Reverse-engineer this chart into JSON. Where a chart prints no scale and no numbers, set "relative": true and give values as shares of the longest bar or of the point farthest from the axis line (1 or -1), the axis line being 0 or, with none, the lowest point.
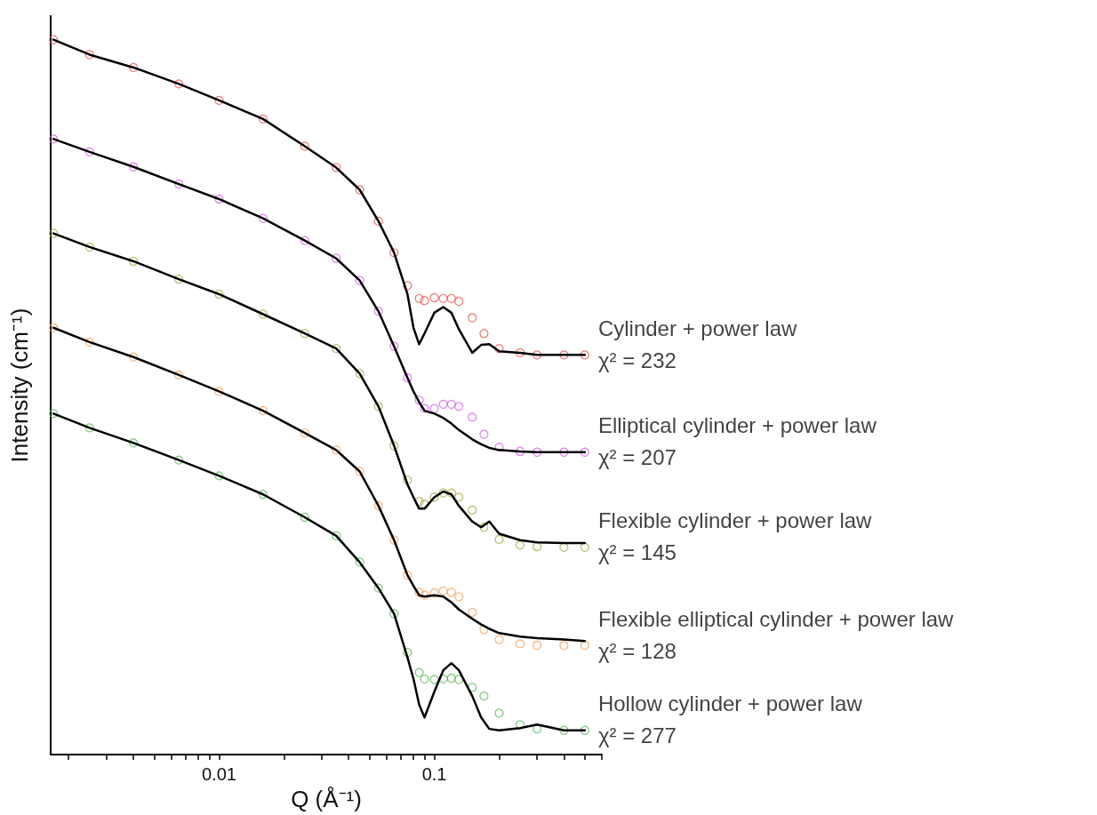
{
  "chart_data": {
    "type": "scatter",
    "xlabel": "Q (Å⁻¹)",
    "ylabel": "Intensity (cm⁻¹)",
    "relative": true,
    "log": "x",
    "grid": false,
    "legend": false,
    "marker": "circle",
    "line_style": "solid",
    "xlim": [
      0.00165,
      0.6
    ],
    "xticks": [
      {
        "value": 0.002,
        "label": null
      },
      {
        "value": 0.003,
        "label": null
      },
      {
        "value": 0.004,
        "label": null
      },
      {
        "value": 0.005,
        "label": null
      },
      {
        "value": 0.006,
        "label": null
      },
      {
        "value": 0.007,
        "label": null
      },
      {
        "value": 0.008,
        "label": null
      },
      {
        "value": 0.009,
        "label": null
      },
      0.01,
      {
        "value": 0.02,
        "label": null
      },
      {
        "value": 0.03,
        "label": null
      },
      {
        "value": 0.04,
        "label": null
      },
      {
        "value": 0.05,
        "label": null
      },
      {
        "value": 0.06,
        "label": null
      },
      {
        "value": 0.07,
        "label": null
      },
      {
        "value": 0.08,
        "label": null
      },
      {
        "value": 0.09,
        "label": null
      },
      0.1,
      {
        "value": 0.2,
        "label": null
      },
      {
        "value": 0.3,
        "label": null
      },
      {
        "value": 0.4,
        "label": null
      },
      {
        "value": 0.5,
        "label": null
      },
      {
        "value": 0.6,
        "label": null
      }
    ],
    "annotations": [
      "χ² = 232",
      "χ² = 207",
      "χ² = 145",
      "χ² = 128",
      "χ² = 277"
    ],
    "series": [
      {
        "name": "Cylinder + power law",
        "color": "#e8554e",
        "x": [
          0.0017,
          0.0025,
          0.004,
          0.0065,
          0.01,
          0.016,
          0.025,
          0.035,
          0.045,
          0.055,
          0.065,
          0.075,
          0.085,
          0.09,
          0.1,
          0.11,
          0.12,
          0.13,
          0.15,
          0.17,
          0.2,
          0.25,
          0.3,
          0.4,
          0.5
        ],
        "values": [
          1.0,
          0.979,
          0.961,
          0.938,
          0.915,
          0.889,
          0.851,
          0.821,
          0.79,
          0.746,
          0.702,
          0.656,
          0.638,
          0.635,
          0.639,
          0.638,
          0.638,
          0.634,
          0.611,
          0.589,
          0.568,
          0.562,
          0.559,
          0.559,
          0.559
        ]
      },
      {
        "type": "line",
        "marker": "none",
        "color": "#000000",
        "x": [
          0.0017,
          0.0025,
          0.004,
          0.0065,
          0.01,
          0.016,
          0.025,
          0.035,
          0.045,
          0.055,
          0.065,
          0.075,
          0.08,
          0.085,
          0.09,
          0.1,
          0.11,
          0.12,
          0.13,
          0.15,
          0.165,
          0.18,
          0.2,
          0.25,
          0.3,
          0.4,
          0.5
        ],
        "values": [
          1.0,
          0.979,
          0.961,
          0.938,
          0.915,
          0.889,
          0.851,
          0.821,
          0.79,
          0.746,
          0.702,
          0.644,
          0.597,
          0.574,
          0.589,
          0.618,
          0.626,
          0.618,
          0.595,
          0.562,
          0.573,
          0.574,
          0.564,
          0.562,
          0.559,
          0.559,
          0.559
        ]
      },
      {
        "name": "Elliptical cylinder + power law",
        "color": "#d65ee8",
        "x": [
          0.0017,
          0.0025,
          0.004,
          0.0065,
          0.01,
          0.016,
          0.025,
          0.035,
          0.045,
          0.055,
          0.065,
          0.075,
          0.085,
          0.09,
          0.1,
          0.11,
          0.12,
          0.13,
          0.15,
          0.17,
          0.2,
          0.25,
          0.3,
          0.4,
          0.5
        ],
        "values": [
          0.861,
          0.843,
          0.822,
          0.798,
          0.777,
          0.75,
          0.719,
          0.694,
          0.663,
          0.62,
          0.571,
          0.527,
          0.496,
          0.484,
          0.484,
          0.49,
          0.49,
          0.487,
          0.472,
          0.448,
          0.43,
          0.424,
          0.423,
          0.423,
          0.423
        ]
      },
      {
        "type": "line",
        "marker": "none",
        "color": "#000000",
        "x": [
          0.0017,
          0.0025,
          0.004,
          0.0065,
          0.01,
          0.016,
          0.025,
          0.035,
          0.045,
          0.055,
          0.065,
          0.075,
          0.08,
          0.085,
          0.09,
          0.1,
          0.11,
          0.12,
          0.13,
          0.15,
          0.165,
          0.18,
          0.2,
          0.25,
          0.3,
          0.4,
          0.5
        ],
        "values": [
          0.861,
          0.843,
          0.822,
          0.798,
          0.777,
          0.75,
          0.719,
          0.694,
          0.663,
          0.62,
          0.571,
          0.527,
          0.508,
          0.493,
          0.481,
          0.477,
          0.471,
          0.463,
          0.454,
          0.441,
          0.434,
          0.429,
          0.426,
          0.424,
          0.423,
          0.423,
          0.423
        ]
      },
      {
        "name": "Flexible cylinder + power law",
        "color": "#a8a94a",
        "x": [
          0.0017,
          0.0025,
          0.004,
          0.0065,
          0.01,
          0.016,
          0.025,
          0.035,
          0.045,
          0.055,
          0.065,
          0.075,
          0.085,
          0.09,
          0.1,
          0.11,
          0.12,
          0.13,
          0.15,
          0.17,
          0.2,
          0.25,
          0.3,
          0.4,
          0.5
        ],
        "values": [
          0.729,
          0.71,
          0.69,
          0.665,
          0.644,
          0.616,
          0.589,
          0.568,
          0.533,
          0.487,
          0.432,
          0.384,
          0.354,
          0.35,
          0.36,
          0.366,
          0.366,
          0.36,
          0.342,
          0.318,
          0.301,
          0.293,
          0.291,
          0.29,
          0.29
        ]
      },
      {
        "type": "line",
        "marker": "none",
        "color": "#000000",
        "x": [
          0.0017,
          0.0025,
          0.004,
          0.0065,
          0.01,
          0.016,
          0.025,
          0.035,
          0.045,
          0.055,
          0.065,
          0.075,
          0.08,
          0.085,
          0.09,
          0.1,
          0.11,
          0.12,
          0.13,
          0.15,
          0.165,
          0.18,
          0.2,
          0.25,
          0.3,
          0.4,
          0.5
        ],
        "values": [
          0.729,
          0.71,
          0.69,
          0.665,
          0.644,
          0.616,
          0.589,
          0.568,
          0.533,
          0.487,
          0.432,
          0.378,
          0.36,
          0.344,
          0.344,
          0.36,
          0.368,
          0.364,
          0.348,
          0.326,
          0.318,
          0.326,
          0.309,
          0.3,
          0.297,
          0.296,
          0.296
        ]
      },
      {
        "name": "Flexible elliptical cylinder + power law",
        "color": "#f5a05a",
        "x": [
          0.0017,
          0.0025,
          0.004,
          0.0065,
          0.01,
          0.016,
          0.025,
          0.035,
          0.045,
          0.055,
          0.065,
          0.075,
          0.085,
          0.09,
          0.1,
          0.11,
          0.12,
          0.13,
          0.15,
          0.17,
          0.2,
          0.25,
          0.3,
          0.4,
          0.5
        ],
        "values": [
          0.597,
          0.577,
          0.556,
          0.531,
          0.508,
          0.481,
          0.45,
          0.426,
          0.396,
          0.348,
          0.3,
          0.251,
          0.227,
          0.223,
          0.226,
          0.229,
          0.227,
          0.221,
          0.199,
          0.175,
          0.161,
          0.155,
          0.153,
          0.153,
          0.153
        ]
      },
      {
        "type": "line",
        "marker": "none",
        "color": "#000000",
        "x": [
          0.0017,
          0.0025,
          0.004,
          0.0065,
          0.01,
          0.016,
          0.025,
          0.035,
          0.045,
          0.055,
          0.065,
          0.075,
          0.08,
          0.085,
          0.09,
          0.1,
          0.11,
          0.12,
          0.13,
          0.15,
          0.165,
          0.18,
          0.2,
          0.25,
          0.3,
          0.4,
          0.5
        ],
        "values": [
          0.597,
          0.577,
          0.556,
          0.531,
          0.508,
          0.481,
          0.45,
          0.426,
          0.396,
          0.348,
          0.3,
          0.251,
          0.236,
          0.223,
          0.221,
          0.223,
          0.221,
          0.213,
          0.203,
          0.19,
          0.182,
          0.176,
          0.17,
          0.165,
          0.163,
          0.161,
          0.159
        ]
      },
      {
        "name": "Hollow cylinder + power law",
        "color": "#5cb85c",
        "x": [
          0.0017,
          0.0025,
          0.004,
          0.0065,
          0.01,
          0.016,
          0.025,
          0.035,
          0.045,
          0.055,
          0.065,
          0.075,
          0.085,
          0.09,
          0.1,
          0.11,
          0.12,
          0.13,
          0.15,
          0.17,
          0.2,
          0.25,
          0.3,
          0.4,
          0.5
        ],
        "values": [
          0.477,
          0.457,
          0.436,
          0.412,
          0.39,
          0.364,
          0.332,
          0.306,
          0.269,
          0.233,
          0.197,
          0.143,
          0.115,
          0.106,
          0.105,
          0.106,
          0.107,
          0.105,
          0.094,
          0.082,
          0.058,
          0.042,
          0.036,
          0.034,
          0.034
        ]
      },
      {
        "type": "line",
        "marker": "none",
        "color": "#000000",
        "x": [
          0.0017,
          0.0025,
          0.004,
          0.0065,
          0.01,
          0.016,
          0.025,
          0.035,
          0.045,
          0.055,
          0.065,
          0.075,
          0.08,
          0.085,
          0.09,
          0.1,
          0.11,
          0.12,
          0.13,
          0.15,
          0.165,
          0.18,
          0.2,
          0.25,
          0.3,
          0.4,
          0.5
        ],
        "values": [
          0.477,
          0.457,
          0.436,
          0.412,
          0.39,
          0.364,
          0.332,
          0.306,
          0.269,
          0.233,
          0.197,
          0.136,
          0.106,
          0.07,
          0.052,
          0.088,
          0.118,
          0.128,
          0.118,
          0.082,
          0.052,
          0.036,
          0.034,
          0.037,
          0.042,
          0.034,
          0.034
        ]
      }
    ]
  }
}
